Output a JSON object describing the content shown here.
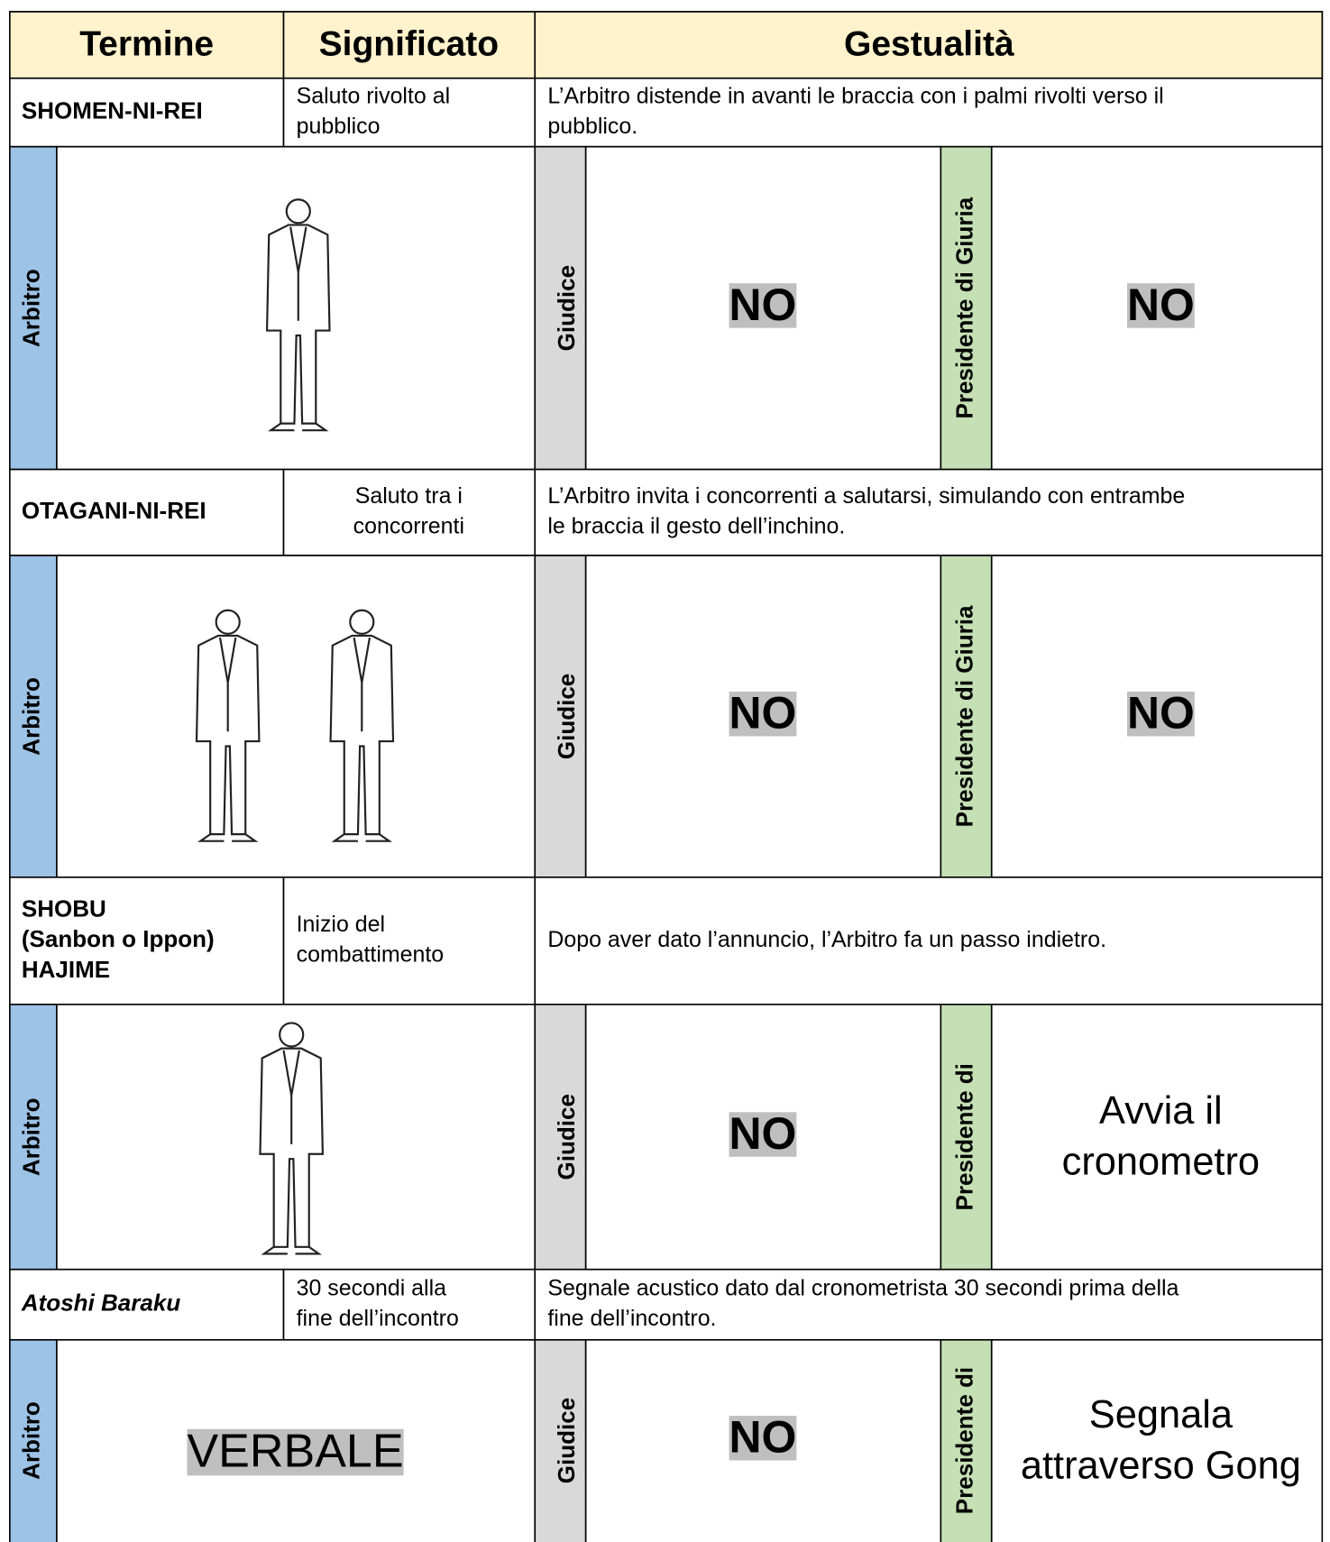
{
  "header": {
    "term": "Termine",
    "meaning": "Significato",
    "gesture": "Gestualità"
  },
  "rows": [
    {
      "term": [
        "SHOMEN-NI-REI"
      ],
      "meaning": [
        "Saluto rivolto al",
        "pubblico"
      ],
      "gesture": [
        "L’Arbitro distende in avanti le braccia con i palmi rivolti verso il",
        "pubblico."
      ],
      "referee": "Arbitro",
      "judge": "Giudice",
      "judge_action": [
        "NO"
      ],
      "president": "Presidente di Giuria",
      "president_action": [
        "NO"
      ]
    },
    {
      "term": [
        "OTAGANI-NI-REI"
      ],
      "meaning": [
        "Saluto tra i",
        "concorrenti"
      ],
      "gesture": [
        "L’Arbitro invita i concorrenti a salutarsi, simulando con entrambe",
        "le braccia il gesto dell’inchino."
      ],
      "referee": "Arbitro",
      "judge": "Giudice",
      "judge_action": [
        "NO"
      ],
      "president": "Presidente di Giuria",
      "president_action": [
        "NO"
      ]
    },
    {
      "term": [
        "SHOBU",
        "(Sanbon o Ippon)",
        "HAJIME"
      ],
      "meaning": [
        "Inizio del",
        "combattimento"
      ],
      "gesture": [
        "Dopo aver dato l’annuncio, l’Arbitro fa un passo indietro."
      ],
      "referee": "Arbitro",
      "judge": "Giudice",
      "judge_action": [
        "NO"
      ],
      "president": "Presidente di",
      "president_action": [
        "Avvia il",
        "cronometro"
      ]
    },
    {
      "term": [
        "Atoshi Baraku"
      ],
      "meaning": [
        "30 secondi alla",
        "fine dell’incontro"
      ],
      "gesture": [
        "Segnale acustico dato dal cronometrista 30 secondi prima della",
        "fine dell’incontro."
      ],
      "referee": "Arbitro",
      "referee_action": "VERBALE",
      "judge": "Giudice",
      "judge_action": [
        "NO"
      ],
      "president": "Presidente di",
      "president_action": [
        "Segnala",
        "attraverso Gong"
      ]
    }
  ]
}
